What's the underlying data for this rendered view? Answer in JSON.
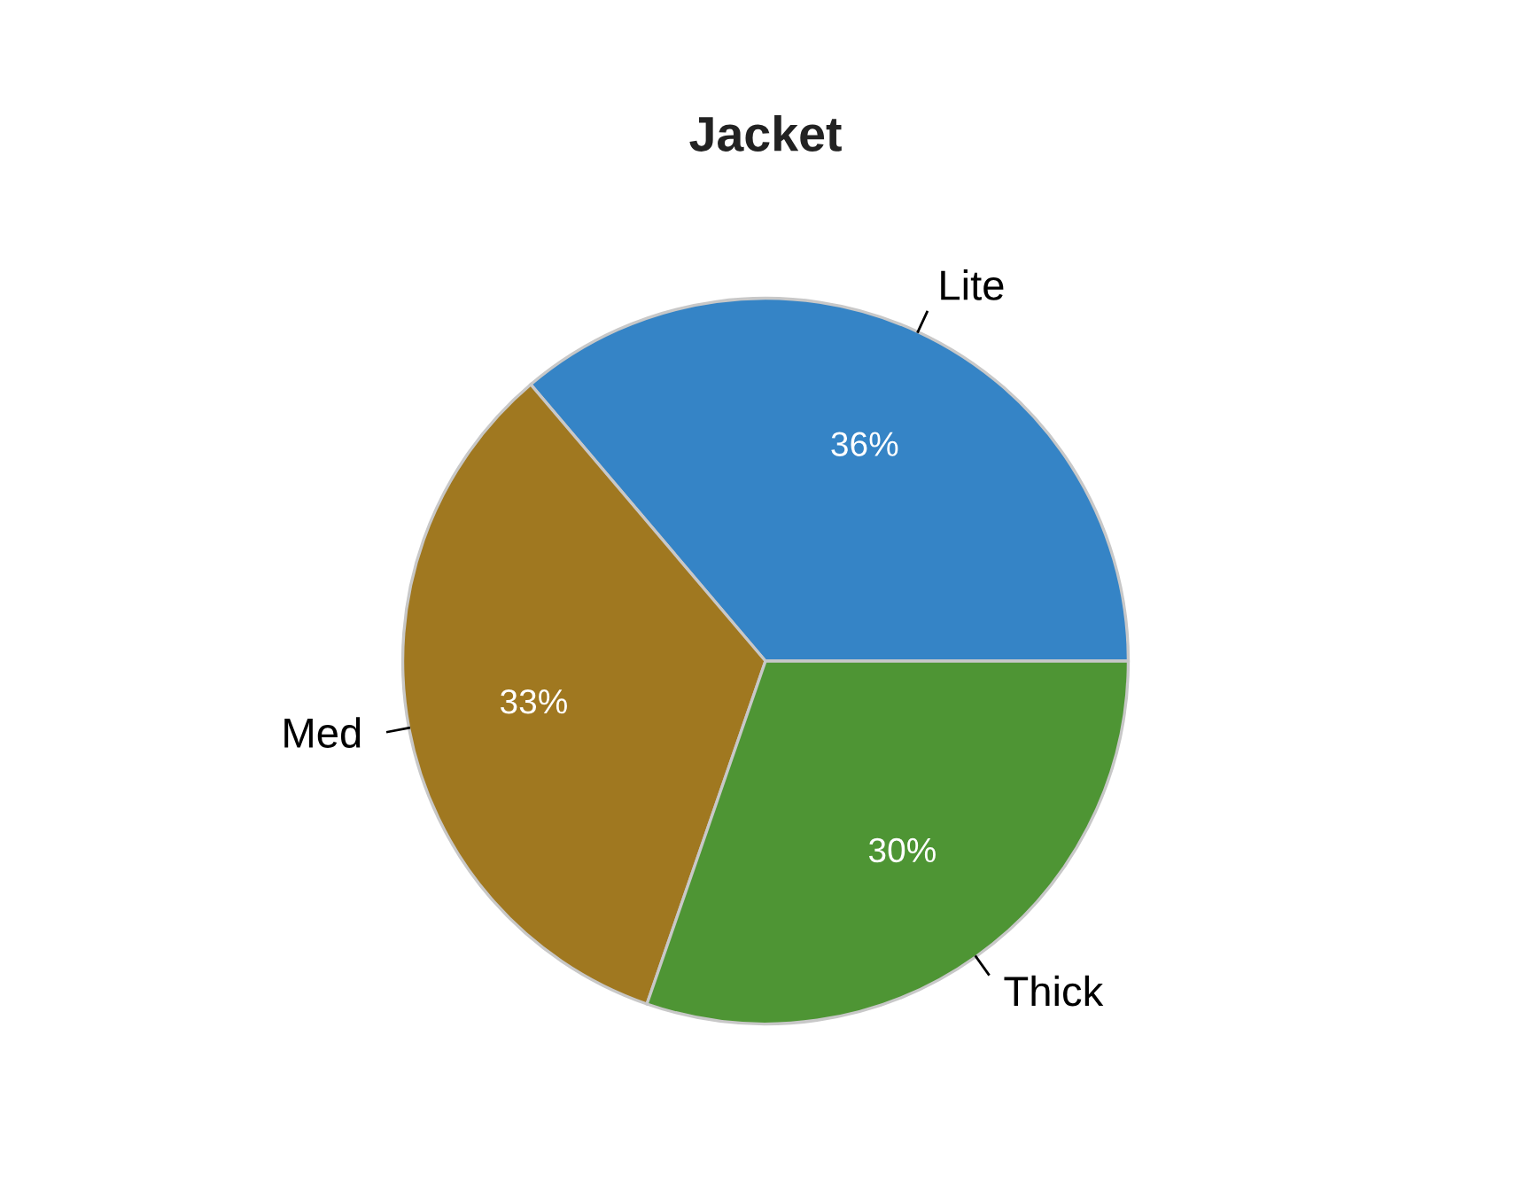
{
  "chart_data": {
    "type": "pie",
    "title": "Jacket",
    "categories": [
      "Lite",
      "Med",
      "Thick"
    ],
    "values": [
      36.2,
      33.5,
      30.3
    ],
    "value_labels": [
      "36%",
      "33%",
      "30%"
    ],
    "colors": [
      "#3584c6",
      "#a07820",
      "#4e9534"
    ]
  }
}
